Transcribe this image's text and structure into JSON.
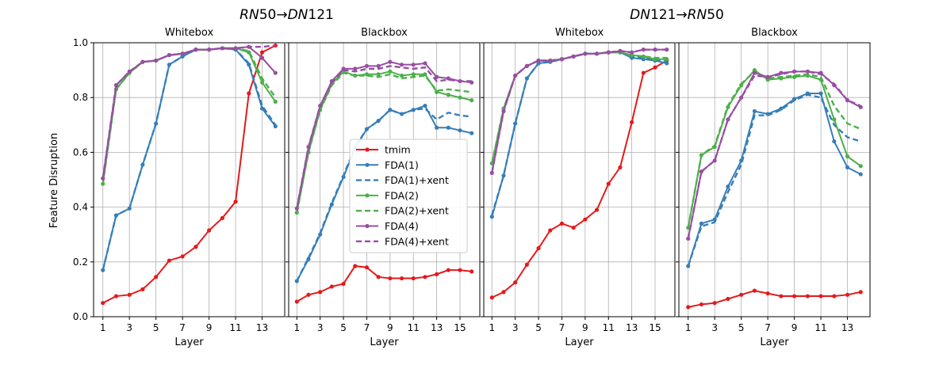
{
  "group_titles": [
    {
      "from": "RN",
      "from_num": "50",
      "arrow": "→",
      "to": "DN",
      "to_num": "121"
    },
    {
      "from": "DN",
      "from_num": "121",
      "arrow": "→",
      "to": "RN",
      "to_num": "50"
    }
  ],
  "colors": {
    "tmim": "#e41a1c",
    "fda1": "#377eb8",
    "fda2": "#4daf4a",
    "fda4": "#984ea3"
  },
  "legend": {
    "placement": "center of second panel",
    "entries": [
      {
        "label": "tmim",
        "color": "#e41a1c",
        "dash": false
      },
      {
        "label": "FDA(1)",
        "color": "#377eb8",
        "dash": false
      },
      {
        "label": "FDA(1)+xent",
        "color": "#377eb8",
        "dash": true
      },
      {
        "label": "FDA(2)",
        "color": "#4daf4a",
        "dash": false
      },
      {
        "label": "FDA(2)+xent",
        "color": "#4daf4a",
        "dash": true
      },
      {
        "label": "FDA(4)",
        "color": "#984ea3",
        "dash": false
      },
      {
        "label": "FDA(4)+xent",
        "color": "#984ea3",
        "dash": true
      }
    ]
  },
  "chart_data": [
    {
      "type": "line",
      "title": "Whitebox",
      "xlabel": "Layer",
      "ylabel": "Feature Disruption",
      "xlim": [
        0.3,
        14.7
      ],
      "ylim": [
        0.0,
        1.0
      ],
      "xticks": [
        1,
        3,
        5,
        7,
        9,
        11,
        13
      ],
      "yticks": [
        "0.0",
        "0.2",
        "0.4",
        "0.6",
        "0.8",
        "1.0"
      ],
      "grid": true,
      "x": [
        1,
        2,
        3,
        4,
        5,
        6,
        7,
        8,
        9,
        10,
        11,
        12,
        13,
        14
      ],
      "series": [
        {
          "name": "tmim",
          "color": "#e41a1c",
          "dash": false,
          "values": [
            0.05,
            0.075,
            0.08,
            0.1,
            0.145,
            0.205,
            0.22,
            0.255,
            0.315,
            0.36,
            0.42,
            0.815,
            0.965,
            0.99
          ]
        },
        {
          "name": "FDA(1)",
          "color": "#377eb8",
          "dash": false,
          "values": [
            0.17,
            0.37,
            0.395,
            0.555,
            0.705,
            0.92,
            0.95,
            0.975,
            0.975,
            0.98,
            0.975,
            0.92,
            0.76,
            0.695
          ]
        },
        {
          "name": "FDA(1)+xent",
          "color": "#377eb8",
          "dash": true,
          "values": [
            0.17,
            0.37,
            0.395,
            0.555,
            0.705,
            0.92,
            0.95,
            0.975,
            0.975,
            0.98,
            0.975,
            0.925,
            0.77,
            0.7
          ]
        },
        {
          "name": "FDA(2)",
          "color": "#4daf4a",
          "dash": false,
          "values": [
            0.485,
            0.83,
            0.89,
            0.93,
            0.935,
            0.955,
            0.96,
            0.975,
            0.975,
            0.98,
            0.98,
            0.965,
            0.855,
            0.785
          ]
        },
        {
          "name": "FDA(2)+xent",
          "color": "#4daf4a",
          "dash": true,
          "values": [
            0.485,
            0.83,
            0.89,
            0.93,
            0.935,
            0.955,
            0.96,
            0.975,
            0.975,
            0.98,
            0.98,
            0.97,
            0.87,
            0.8
          ]
        },
        {
          "name": "FDA(4)",
          "color": "#984ea3",
          "dash": false,
          "values": [
            0.505,
            0.845,
            0.895,
            0.93,
            0.935,
            0.955,
            0.96,
            0.975,
            0.975,
            0.98,
            0.98,
            0.985,
            0.945,
            0.89
          ]
        },
        {
          "name": "FDA(4)+xent",
          "color": "#984ea3",
          "dash": true,
          "values": [
            0.505,
            0.845,
            0.895,
            0.93,
            0.935,
            0.955,
            0.96,
            0.975,
            0.975,
            0.98,
            0.98,
            0.985,
            0.985,
            0.99
          ]
        }
      ]
    },
    {
      "type": "line",
      "title": "Blackbox",
      "xlabel": "Layer",
      "ylabel": "",
      "xlim": [
        0.3,
        16.7
      ],
      "ylim": [
        0.0,
        1.0
      ],
      "xticks": [
        1,
        3,
        5,
        7,
        9,
        11,
        13,
        15
      ],
      "yticks": [],
      "grid": true,
      "x": [
        1,
        2,
        3,
        4,
        5,
        6,
        7,
        8,
        9,
        10,
        11,
        12,
        13,
        14,
        15,
        16
      ],
      "series": [
        {
          "name": "tmim",
          "color": "#e41a1c",
          "dash": false,
          "values": [
            0.055,
            0.08,
            0.09,
            0.11,
            0.12,
            0.185,
            0.18,
            0.145,
            0.14,
            0.14,
            0.14,
            0.145,
            0.155,
            0.17,
            0.17,
            0.165
          ]
        },
        {
          "name": "FDA(1)",
          "color": "#377eb8",
          "dash": false,
          "values": [
            0.13,
            0.21,
            0.3,
            0.41,
            0.51,
            0.615,
            0.685,
            0.715,
            0.755,
            0.74,
            0.755,
            0.77,
            0.69,
            0.69,
            0.68,
            0.67
          ]
        },
        {
          "name": "FDA(1)+xent",
          "color": "#377eb8",
          "dash": true,
          "values": [
            0.13,
            0.215,
            0.305,
            0.415,
            0.515,
            0.62,
            0.685,
            0.715,
            0.755,
            0.74,
            0.755,
            0.76,
            0.72,
            0.745,
            0.735,
            0.73
          ]
        },
        {
          "name": "FDA(2)",
          "color": "#4daf4a",
          "dash": false,
          "values": [
            0.38,
            0.6,
            0.755,
            0.85,
            0.895,
            0.88,
            0.885,
            0.885,
            0.895,
            0.88,
            0.885,
            0.885,
            0.82,
            0.81,
            0.8,
            0.79
          ]
        },
        {
          "name": "FDA(2)+xent",
          "color": "#4daf4a",
          "dash": true,
          "values": [
            0.38,
            0.6,
            0.755,
            0.845,
            0.89,
            0.88,
            0.88,
            0.875,
            0.885,
            0.87,
            0.875,
            0.88,
            0.825,
            0.83,
            0.825,
            0.82
          ]
        },
        {
          "name": "FDA(4)",
          "color": "#984ea3",
          "dash": false,
          "values": [
            0.395,
            0.62,
            0.77,
            0.86,
            0.905,
            0.905,
            0.915,
            0.915,
            0.93,
            0.92,
            0.92,
            0.925,
            0.875,
            0.87,
            0.86,
            0.855
          ]
        },
        {
          "name": "FDA(4)+xent",
          "color": "#984ea3",
          "dash": true,
          "values": [
            0.395,
            0.62,
            0.77,
            0.855,
            0.9,
            0.895,
            0.905,
            0.905,
            0.915,
            0.91,
            0.905,
            0.91,
            0.86,
            0.865,
            0.86,
            0.86
          ]
        }
      ]
    },
    {
      "type": "line",
      "title": "Whitebox",
      "xlabel": "Layer",
      "ylabel": "",
      "xlim": [
        0.3,
        16.7
      ],
      "ylim": [
        0.0,
        1.0
      ],
      "xticks": [
        1,
        3,
        5,
        7,
        9,
        11,
        13,
        15
      ],
      "yticks": [],
      "grid": true,
      "x": [
        1,
        2,
        3,
        4,
        5,
        6,
        7,
        8,
        9,
        10,
        11,
        12,
        13,
        14,
        15,
        16
      ],
      "series": [
        {
          "name": "tmim",
          "color": "#e41a1c",
          "dash": false,
          "values": [
            0.07,
            0.09,
            0.125,
            0.19,
            0.25,
            0.315,
            0.34,
            0.325,
            0.355,
            0.39,
            0.485,
            0.545,
            0.71,
            0.89,
            0.91,
            0.935
          ]
        },
        {
          "name": "FDA(1)",
          "color": "#377eb8",
          "dash": false,
          "values": [
            0.365,
            0.515,
            0.705,
            0.87,
            0.925,
            0.93,
            0.94,
            0.95,
            0.96,
            0.96,
            0.965,
            0.965,
            0.945,
            0.94,
            0.935,
            0.925
          ]
        },
        {
          "name": "FDA(1)+xent",
          "color": "#377eb8",
          "dash": true,
          "values": [
            0.37,
            0.515,
            0.705,
            0.87,
            0.925,
            0.93,
            0.94,
            0.95,
            0.96,
            0.96,
            0.965,
            0.965,
            0.95,
            0.945,
            0.94,
            0.93
          ]
        },
        {
          "name": "FDA(2)",
          "color": "#4daf4a",
          "dash": false,
          "values": [
            0.56,
            0.76,
            0.88,
            0.915,
            0.935,
            0.935,
            0.94,
            0.95,
            0.96,
            0.96,
            0.965,
            0.965,
            0.955,
            0.95,
            0.94,
            0.94
          ]
        },
        {
          "name": "FDA(2)+xent",
          "color": "#4daf4a",
          "dash": true,
          "values": [
            0.56,
            0.76,
            0.88,
            0.915,
            0.935,
            0.935,
            0.94,
            0.95,
            0.96,
            0.96,
            0.965,
            0.965,
            0.955,
            0.95,
            0.945,
            0.945
          ]
        },
        {
          "name": "FDA(4)",
          "color": "#984ea3",
          "dash": false,
          "values": [
            0.525,
            0.75,
            0.88,
            0.915,
            0.935,
            0.935,
            0.94,
            0.95,
            0.96,
            0.96,
            0.965,
            0.97,
            0.965,
            0.975,
            0.975,
            0.975
          ]
        },
        {
          "name": "FDA(4)+xent",
          "color": "#984ea3",
          "dash": true,
          "values": [
            0.525,
            0.75,
            0.88,
            0.915,
            0.935,
            0.935,
            0.94,
            0.95,
            0.96,
            0.96,
            0.965,
            0.97,
            0.965,
            0.975,
            0.975,
            0.975
          ]
        }
      ]
    },
    {
      "type": "line",
      "title": "Blackbox",
      "xlabel": "Layer",
      "ylabel": "",
      "xlim": [
        0.3,
        14.7
      ],
      "ylim": [
        0.0,
        1.0
      ],
      "xticks": [
        1,
        3,
        5,
        7,
        9,
        11,
        13
      ],
      "yticks": [],
      "grid": true,
      "x": [
        1,
        2,
        3,
        4,
        5,
        6,
        7,
        8,
        9,
        10,
        11,
        12,
        13,
        14
      ],
      "series": [
        {
          "name": "tmim",
          "color": "#e41a1c",
          "dash": false,
          "values": [
            0.035,
            0.045,
            0.05,
            0.065,
            0.08,
            0.095,
            0.085,
            0.075,
            0.075,
            0.075,
            0.075,
            0.075,
            0.08,
            0.09
          ]
        },
        {
          "name": "FDA(1)",
          "color": "#377eb8",
          "dash": false,
          "values": [
            0.185,
            0.34,
            0.355,
            0.475,
            0.57,
            0.75,
            0.74,
            0.76,
            0.795,
            0.815,
            0.815,
            0.64,
            0.545,
            0.52
          ]
        },
        {
          "name": "FDA(1)+xent",
          "color": "#377eb8",
          "dash": true,
          "values": [
            0.185,
            0.33,
            0.345,
            0.455,
            0.555,
            0.735,
            0.735,
            0.755,
            0.79,
            0.81,
            0.8,
            0.7,
            0.655,
            0.64
          ]
        },
        {
          "name": "FDA(2)",
          "color": "#4daf4a",
          "dash": false,
          "values": [
            0.325,
            0.59,
            0.62,
            0.765,
            0.845,
            0.9,
            0.865,
            0.87,
            0.875,
            0.88,
            0.865,
            0.72,
            0.585,
            0.55
          ]
        },
        {
          "name": "FDA(2)+xent",
          "color": "#4daf4a",
          "dash": true,
          "values": [
            0.325,
            0.59,
            0.625,
            0.77,
            0.85,
            0.895,
            0.87,
            0.875,
            0.88,
            0.885,
            0.875,
            0.77,
            0.705,
            0.685
          ]
        },
        {
          "name": "FDA(4)",
          "color": "#984ea3",
          "dash": false,
          "values": [
            0.285,
            0.53,
            0.57,
            0.72,
            0.8,
            0.89,
            0.875,
            0.89,
            0.895,
            0.895,
            0.89,
            0.845,
            0.79,
            0.765
          ]
        },
        {
          "name": "FDA(4)+xent",
          "color": "#984ea3",
          "dash": true,
          "values": [
            0.285,
            0.53,
            0.57,
            0.72,
            0.8,
            0.88,
            0.875,
            0.885,
            0.895,
            0.895,
            0.885,
            0.85,
            0.79,
            0.77
          ]
        }
      ]
    }
  ]
}
